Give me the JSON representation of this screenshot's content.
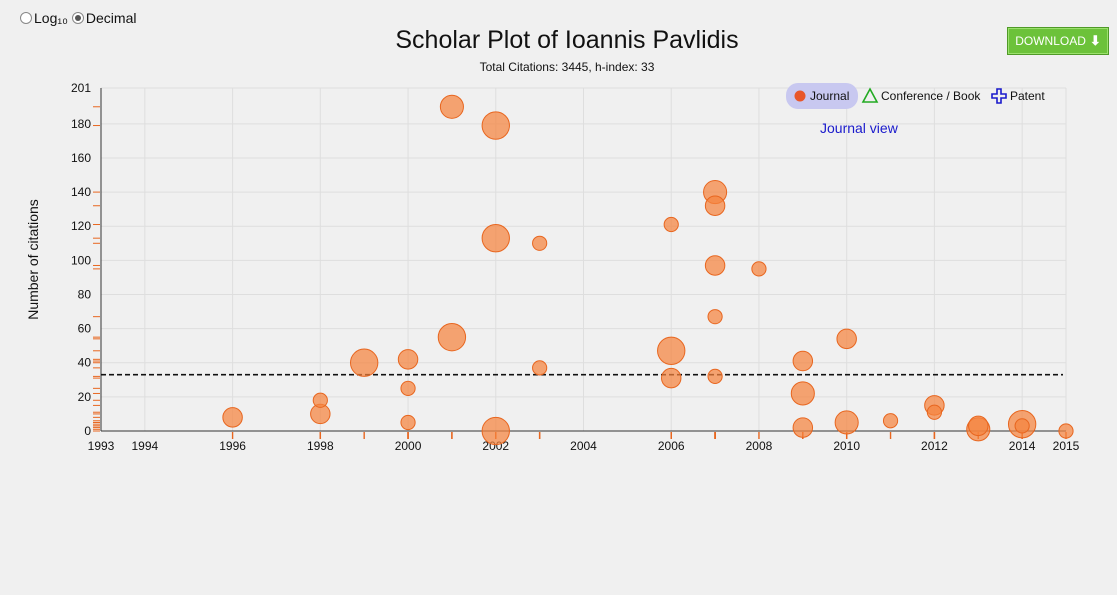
{
  "scale_toggle": {
    "options": [
      {
        "label": "Log₁₀",
        "checked": false
      },
      {
        "label": "Decimal",
        "checked": true
      }
    ]
  },
  "header": {
    "title": "Scholar Plot of Ioannis Pavlidis",
    "subtitle": "Total Citations: 3445, h-index: 33"
  },
  "download_label": "DOWNLOAD",
  "view_label": "Journal view",
  "legend": [
    {
      "label": "Journal",
      "icon": "filled-circle-icon",
      "color": "#e8562a",
      "active": true
    },
    {
      "label": "Conference / Book",
      "icon": "triangle-icon",
      "color": "#22aa22",
      "active": false
    },
    {
      "label": "Patent",
      "icon": "cross-icon",
      "color": "#1a1acc",
      "active": false
    }
  ],
  "colors": {
    "point": "#f5843f",
    "point_stroke": "#e8661f",
    "hindex_line": "#111111",
    "legend_highlight": "#c8c8f0"
  },
  "chart_data": {
    "type": "scatter",
    "title": "Scholar Plot of Ioannis Pavlidis",
    "subtitle": "Total Citations: 3445, h-index: 33",
    "ylabel": "Number of citations",
    "xlabel": "",
    "xlim": [
      1993,
      2015
    ],
    "ylim": [
      0,
      201
    ],
    "x_ticks": [
      "1993",
      "1994",
      "1996",
      "1998",
      "2000",
      "2002",
      "2004",
      "2006",
      "2008",
      "2010",
      "2012",
      "2014",
      "2015"
    ],
    "x_tick_values": [
      1993,
      1994,
      1996,
      1998,
      2000,
      2002,
      2004,
      2006,
      2008,
      2010,
      2012,
      2014,
      2015
    ],
    "y_ticks": [
      0,
      20,
      40,
      60,
      80,
      100,
      120,
      140,
      160,
      180,
      201
    ],
    "h_index": 33,
    "grid": true,
    "legend_position": "top-right",
    "series": [
      {
        "name": "Journal",
        "points": [
          {
            "x": 1996,
            "y": 8,
            "size": 3
          },
          {
            "x": 1998,
            "y": 18,
            "size": 1
          },
          {
            "x": 1998,
            "y": 10,
            "size": 3
          },
          {
            "x": 1999,
            "y": 40,
            "size": 8
          },
          {
            "x": 2000,
            "y": 42,
            "size": 3
          },
          {
            "x": 2000,
            "y": 25,
            "size": 1
          },
          {
            "x": 2000,
            "y": 5,
            "size": 1
          },
          {
            "x": 2001,
            "y": 190,
            "size": 5
          },
          {
            "x": 2001,
            "y": 55,
            "size": 8
          },
          {
            "x": 2002,
            "y": 179,
            "size": 8
          },
          {
            "x": 2002,
            "y": 113,
            "size": 8
          },
          {
            "x": 2002,
            "y": 0,
            "size": 8
          },
          {
            "x": 2003,
            "y": 110,
            "size": 1
          },
          {
            "x": 2003,
            "y": 37,
            "size": 1
          },
          {
            "x": 2006,
            "y": 121,
            "size": 1
          },
          {
            "x": 2006,
            "y": 47,
            "size": 8
          },
          {
            "x": 2006,
            "y": 31,
            "size": 3
          },
          {
            "x": 2007,
            "y": 140,
            "size": 5
          },
          {
            "x": 2007,
            "y": 132,
            "size": 3
          },
          {
            "x": 2007,
            "y": 97,
            "size": 3
          },
          {
            "x": 2007,
            "y": 67,
            "size": 1
          },
          {
            "x": 2007,
            "y": 32,
            "size": 1
          },
          {
            "x": 2008,
            "y": 95,
            "size": 1
          },
          {
            "x": 2009,
            "y": 41,
            "size": 3
          },
          {
            "x": 2009,
            "y": 22,
            "size": 5
          },
          {
            "x": 2009,
            "y": 2,
            "size": 3
          },
          {
            "x": 2010,
            "y": 54,
            "size": 3
          },
          {
            "x": 2010,
            "y": 5,
            "size": 5
          },
          {
            "x": 2011,
            "y": 6,
            "size": 1
          },
          {
            "x": 2012,
            "y": 15,
            "size": 3
          },
          {
            "x": 2012,
            "y": 11,
            "size": 1
          },
          {
            "x": 2013,
            "y": 3,
            "size": 3
          },
          {
            "x": 2013,
            "y": 1,
            "size": 5
          },
          {
            "x": 2014,
            "y": 4,
            "size": 8
          },
          {
            "x": 2014,
            "y": 3,
            "size": 1
          },
          {
            "x": 2015,
            "y": 0,
            "size": 1
          }
        ]
      }
    ]
  }
}
